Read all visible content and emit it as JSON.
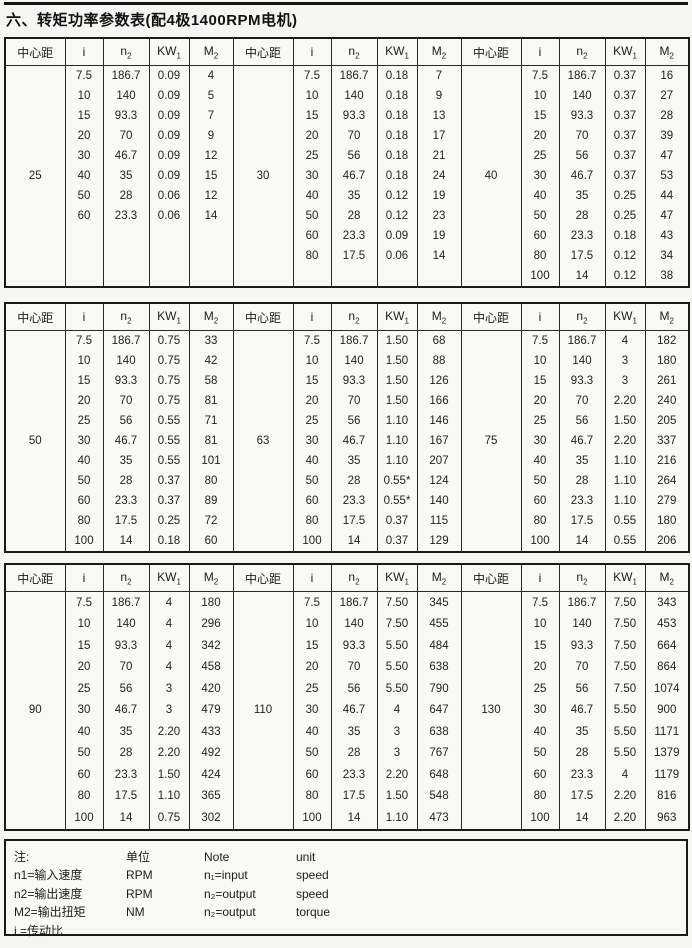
{
  "page": {
    "title": "六、转矩功率参数表(配4极1400RPM电机)"
  },
  "columns": [
    {
      "base": "中心距",
      "sub": ""
    },
    {
      "base": "i",
      "sub": ""
    },
    {
      "base": "n",
      "sub": "2"
    },
    {
      "base": "KW",
      "sub": "1"
    },
    {
      "base": "M",
      "sub": "2"
    }
  ],
  "tables": [
    {
      "groups": [
        {
          "center_distance": "25",
          "rows": [
            [
              "7.5",
              "186.7",
              "0.09",
              "4"
            ],
            [
              "10",
              "140",
              "0.09",
              "5"
            ],
            [
              "15",
              "93.3",
              "0.09",
              "7"
            ],
            [
              "20",
              "70",
              "0.09",
              "9"
            ],
            [
              "30",
              "46.7",
              "0.09",
              "12"
            ],
            [
              "40",
              "35",
              "0.09",
              "15"
            ],
            [
              "50",
              "28",
              "0.06",
              "12"
            ],
            [
              "60",
              "23.3",
              "0.06",
              "14"
            ]
          ]
        },
        {
          "center_distance": "30",
          "rows": [
            [
              "7.5",
              "186.7",
              "0.18",
              "7"
            ],
            [
              "10",
              "140",
              "0.18",
              "9"
            ],
            [
              "15",
              "93.3",
              "0.18",
              "13"
            ],
            [
              "20",
              "70",
              "0.18",
              "17"
            ],
            [
              "25",
              "56",
              "0.18",
              "21"
            ],
            [
              "30",
              "46.7",
              "0.18",
              "24"
            ],
            [
              "40",
              "35",
              "0.12",
              "19"
            ],
            [
              "50",
              "28",
              "0.12",
              "23"
            ],
            [
              "60",
              "23.3",
              "0.09",
              "19"
            ],
            [
              "80",
              "17.5",
              "0.06",
              "14"
            ]
          ]
        },
        {
          "center_distance": "40",
          "rows": [
            [
              "7.5",
              "186.7",
              "0.37",
              "16"
            ],
            [
              "10",
              "140",
              "0.37",
              "27"
            ],
            [
              "15",
              "93.3",
              "0.37",
              "28"
            ],
            [
              "20",
              "70",
              "0.37",
              "39"
            ],
            [
              "25",
              "56",
              "0.37",
              "47"
            ],
            [
              "30",
              "46.7",
              "0.37",
              "53"
            ],
            [
              "40",
              "35",
              "0.25",
              "44"
            ],
            [
              "50",
              "28",
              "0.25",
              "47"
            ],
            [
              "60",
              "23.3",
              "0.18",
              "43"
            ],
            [
              "80",
              "17.5",
              "0.12",
              "34"
            ],
            [
              "100",
              "14",
              "0.12",
              "38"
            ]
          ]
        }
      ]
    },
    {
      "groups": [
        {
          "center_distance": "50",
          "rows": [
            [
              "7.5",
              "186.7",
              "0.75",
              "33"
            ],
            [
              "10",
              "140",
              "0.75",
              "42"
            ],
            [
              "15",
              "93.3",
              "0.75",
              "58"
            ],
            [
              "20",
              "70",
              "0.75",
              "81"
            ],
            [
              "25",
              "56",
              "0.55",
              "71"
            ],
            [
              "30",
              "46.7",
              "0.55",
              "81"
            ],
            [
              "40",
              "35",
              "0.55",
              "101"
            ],
            [
              "50",
              "28",
              "0.37",
              "80"
            ],
            [
              "60",
              "23.3",
              "0.37",
              "89"
            ],
            [
              "80",
              "17.5",
              "0.25",
              "72"
            ],
            [
              "100",
              "14",
              "0.18",
              "60"
            ]
          ]
        },
        {
          "center_distance": "63",
          "rows": [
            [
              "7.5",
              "186.7",
              "1.50",
              "68"
            ],
            [
              "10",
              "140",
              "1.50",
              "88"
            ],
            [
              "15",
              "93.3",
              "1.50",
              "126"
            ],
            [
              "20",
              "70",
              "1.50",
              "166"
            ],
            [
              "25",
              "56",
              "1.10",
              "146"
            ],
            [
              "30",
              "46.7",
              "1.10",
              "167"
            ],
            [
              "40",
              "35",
              "1.10",
              "207"
            ],
            [
              "50",
              "28",
              "0.55*",
              "124"
            ],
            [
              "60",
              "23.3",
              "0.55*",
              "140"
            ],
            [
              "80",
              "17.5",
              "0.37",
              "115"
            ],
            [
              "100",
              "14",
              "0.37",
              "129"
            ]
          ]
        },
        {
          "center_distance": "75",
          "rows": [
            [
              "7.5",
              "186.7",
              "4",
              "182"
            ],
            [
              "10",
              "140",
              "3",
              "180"
            ],
            [
              "15",
              "93.3",
              "3",
              "261"
            ],
            [
              "20",
              "70",
              "2.20",
              "240"
            ],
            [
              "25",
              "56",
              "1.50",
              "205"
            ],
            [
              "30",
              "46.7",
              "2.20",
              "337"
            ],
            [
              "40",
              "35",
              "1.10",
              "216"
            ],
            [
              "50",
              "28",
              "1.10",
              "264"
            ],
            [
              "60",
              "23.3",
              "1.10",
              "279"
            ],
            [
              "80",
              "17.5",
              "0.55",
              "180"
            ],
            [
              "100",
              "14",
              "0.55",
              "206"
            ]
          ]
        }
      ]
    },
    {
      "groups": [
        {
          "center_distance": "90",
          "rows": [
            [
              "7.5",
              "186.7",
              "4",
              "180"
            ],
            [
              "10",
              "140",
              "4",
              "296"
            ],
            [
              "15",
              "93.3",
              "4",
              "342"
            ],
            [
              "20",
              "70",
              "4",
              "458"
            ],
            [
              "25",
              "56",
              "3",
              "420"
            ],
            [
              "30",
              "46.7",
              "3",
              "479"
            ],
            [
              "40",
              "35",
              "2.20",
              "433"
            ],
            [
              "50",
              "28",
              "2.20",
              "492"
            ],
            [
              "60",
              "23.3",
              "1.50",
              "424"
            ],
            [
              "80",
              "17.5",
              "1.10",
              "365"
            ],
            [
              "100",
              "14",
              "0.75",
              "302"
            ]
          ]
        },
        {
          "center_distance": "110",
          "rows": [
            [
              "7.5",
              "186.7",
              "7.50",
              "345"
            ],
            [
              "10",
              "140",
              "7.50",
              "455"
            ],
            [
              "15",
              "93.3",
              "5.50",
              "484"
            ],
            [
              "20",
              "70",
              "5.50",
              "638"
            ],
            [
              "25",
              "56",
              "5.50",
              "790"
            ],
            [
              "30",
              "46.7",
              "4",
              "647"
            ],
            [
              "40",
              "35",
              "3",
              "638"
            ],
            [
              "50",
              "28",
              "3",
              "767"
            ],
            [
              "60",
              "23.3",
              "2.20",
              "648"
            ],
            [
              "80",
              "17.5",
              "1.50",
              "548"
            ],
            [
              "100",
              "14",
              "1.10",
              "473"
            ]
          ]
        },
        {
          "center_distance": "130",
          "rows": [
            [
              "7.5",
              "186.7",
              "7.50",
              "343"
            ],
            [
              "10",
              "140",
              "7.50",
              "453"
            ],
            [
              "15",
              "93.3",
              "7.50",
              "664"
            ],
            [
              "20",
              "70",
              "7.50",
              "864"
            ],
            [
              "25",
              "56",
              "7.50",
              "1074"
            ],
            [
              "30",
              "46.7",
              "5.50",
              "900"
            ],
            [
              "40",
              "35",
              "5.50",
              "1171"
            ],
            [
              "50",
              "28",
              "5.50",
              "1379"
            ],
            [
              "60",
              "23.3",
              "4",
              "1179"
            ],
            [
              "80",
              "17.5",
              "2.20",
              "816"
            ],
            [
              "100",
              "14",
              "2.20",
              "963"
            ]
          ]
        }
      ]
    }
  ],
  "notes": {
    "rows": [
      [
        "注:",
        "单位",
        "Note",
        "unit"
      ],
      [
        "n1=输入速度",
        "RPM",
        "n₁=input",
        "speed"
      ],
      [
        "n2=输出速度",
        "RPM",
        "n₂=output",
        "speed"
      ],
      [
        "M2=输出扭矩",
        "NM",
        "n₂=output",
        "torque"
      ],
      [
        "i =传动比",
        "",
        "",
        ""
      ]
    ]
  }
}
